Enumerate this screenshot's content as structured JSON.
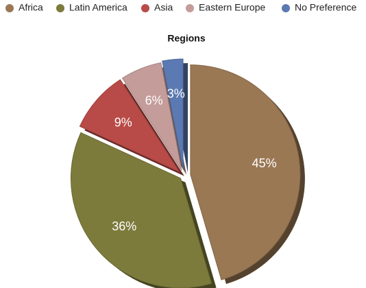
{
  "chart_data": {
    "type": "pie",
    "title": "Regions",
    "categories": [
      "Africa",
      "Latin America",
      "Asia",
      "Eastern Europe",
      "No Preference"
    ],
    "values": [
      45,
      36,
      9,
      6,
      3
    ],
    "value_labels": [
      "45%",
      "36%",
      "9%",
      "6%",
      "3%"
    ],
    "colors": [
      "#9a7854",
      "#7c7b3c",
      "#b84b47",
      "#c49c99",
      "#5b79b2"
    ],
    "legend": "top"
  }
}
